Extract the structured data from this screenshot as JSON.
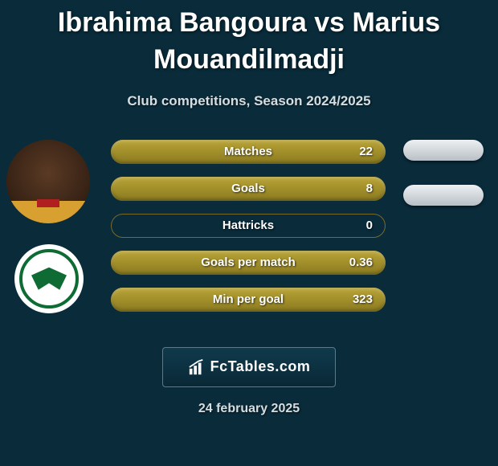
{
  "title_line1": "Ibrahima Bangoura vs Marius",
  "title_line2": "Mouandilmadji",
  "subtitle": "Club competitions, Season 2024/2025",
  "date": "24 february 2025",
  "brand_text": "FcTables.com",
  "colors": {
    "background": "#092b3a",
    "bar_fill_top": "#b9a436",
    "bar_fill_bottom": "#8a7a20",
    "bar_border": "#7a6a2a",
    "pill_top": "#eef1f3",
    "pill_bottom": "#b8bfc5",
    "badge_green": "#0d6b33",
    "text": "#ffffff",
    "muted": "#d5dde1"
  },
  "player1": {
    "has_photo": true,
    "team_badge_label": "Konyaspor 1981"
  },
  "player2": {
    "has_photo": false,
    "pill_count": 2
  },
  "stats": [
    {
      "label": "Matches",
      "value": "22",
      "fill_pct": 100
    },
    {
      "label": "Goals",
      "value": "8",
      "fill_pct": 100
    },
    {
      "label": "Hattricks",
      "value": "0",
      "fill_pct": 0
    },
    {
      "label": "Goals per match",
      "value": "0.36",
      "fill_pct": 100
    },
    {
      "label": "Min per goal",
      "value": "323",
      "fill_pct": 100
    }
  ]
}
